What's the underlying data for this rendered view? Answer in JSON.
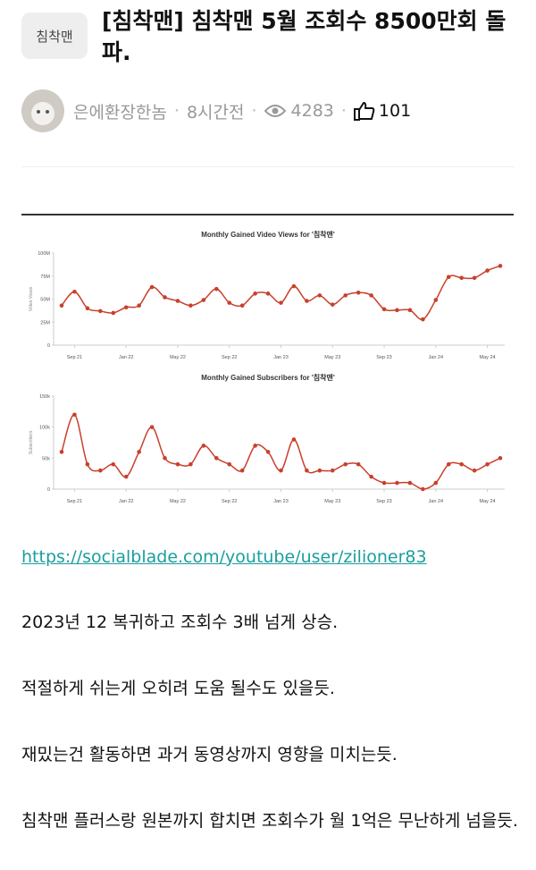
{
  "post": {
    "category": "침착맨",
    "title": "[침착맨] 침착맨 5월 조회수 8500만회 돌파.",
    "author": "은에환장한놈",
    "time": "8시간전",
    "views": 4283,
    "likes": 101,
    "link": "https://socialblade.com/youtube/user/zilioner83",
    "paragraphs": [
      "2023년 12 복귀하고 조회수 3배 넘게 상승.",
      "적절하게 쉬는게 오히려 도움 될수도 있을듯.",
      "재밌는건 활동하면 과거 동영상까지 영향을 미치는듯.",
      "침착맨 플러스랑 원본까지 합치면 조회수가 월 1억은 무난하게 넘을듯."
    ]
  },
  "chart_data": [
    {
      "type": "line",
      "title": "Monthly Gained Video Views for '침착맨'",
      "y_label": "Video Views",
      "categories": [
        null,
        "Sep 21",
        null,
        null,
        null,
        "Jan 22",
        null,
        null,
        null,
        "May 22",
        null,
        null,
        null,
        "Sep 22",
        null,
        null,
        null,
        "Jan 23",
        null,
        null,
        null,
        "May 23",
        null,
        null,
        null,
        "Sep 23",
        null,
        null,
        null,
        "Jan 24",
        null,
        null,
        null,
        "May 24",
        null
      ],
      "values": [
        43,
        58,
        40,
        37,
        35,
        41,
        43,
        63,
        52,
        48,
        43,
        49,
        61,
        46,
        43,
        56,
        56,
        46,
        64,
        48,
        54,
        44,
        54,
        57,
        54,
        39,
        38,
        38,
        28,
        49,
        74,
        73,
        73,
        81,
        86
      ],
      "color": "#c8402b",
      "ylim": [
        0,
        100
      ],
      "yticks": [
        0,
        {
          "value": 25,
          "label": "25M"
        },
        {
          "value": 50,
          "label": "50M"
        },
        {
          "value": 75,
          "label": "75M"
        },
        {
          "value": 100,
          "label": "100M"
        }
      ]
    },
    {
      "type": "line",
      "title": "Monthly Gained Subscribers for '침착맨'",
      "y_label": "Subscribers",
      "categories": [
        null,
        "Sep 21",
        null,
        null,
        null,
        "Jan 22",
        null,
        null,
        null,
        "May 22",
        null,
        null,
        null,
        "Sep 22",
        null,
        null,
        null,
        "Jan 23",
        null,
        null,
        null,
        "May 23",
        null,
        null,
        null,
        "Sep 23",
        null,
        null,
        null,
        "Jan 24",
        null,
        null,
        null,
        "May 24",
        null
      ],
      "values": [
        60,
        120,
        40,
        30,
        40,
        20,
        60,
        100,
        50,
        40,
        40,
        70,
        50,
        40,
        30,
        70,
        60,
        30,
        80,
        30,
        30,
        30,
        40,
        40,
        20,
        10,
        10,
        10,
        0,
        10,
        40,
        40,
        30,
        40,
        50
      ],
      "color": "#c8402b",
      "ylim": [
        0,
        150
      ],
      "yticks": [
        0,
        {
          "value": 50,
          "label": "50k"
        },
        {
          "value": 100,
          "label": "100k"
        },
        {
          "value": 150,
          "label": "150k"
        }
      ]
    }
  ]
}
